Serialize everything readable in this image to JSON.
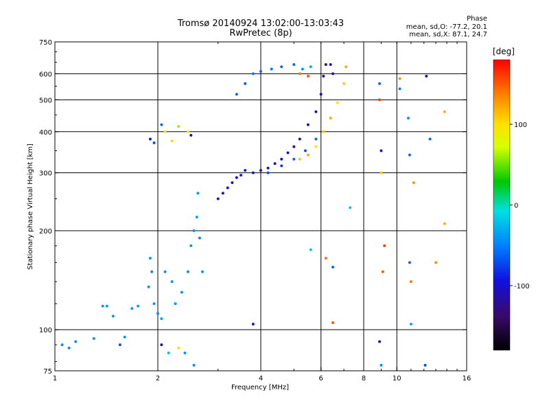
{
  "header": {
    "title": "Tromsø 20140924 13:02:00-13:03:43",
    "subtitle": "RwPretec (8p)"
  },
  "phase_info": {
    "heading": "Phase",
    "line_o": "mean, sd,O: -77.2, 20.1",
    "line_x": "mean, sd,X:  87.1, 24.7"
  },
  "colorbar": {
    "unit": "[deg]",
    "range": [
      -180,
      180
    ],
    "ticks": [
      {
        "value": 100,
        "label": "100"
      },
      {
        "value": 0,
        "label": "0"
      },
      {
        "value": -100,
        "label": "-100"
      }
    ]
  },
  "chart_data": {
    "type": "scatter",
    "title": "Tromsø 20140924 13:02:00-13:03:43",
    "subtitle": "RwPretec (8p)",
    "xlabel": "Frequency [MHz]",
    "ylabel": "Stationary phase Virtual Height [km]",
    "x_scale": "log",
    "y_scale": "log",
    "xlim": [
      1,
      16
    ],
    "ylim": [
      75,
      750
    ],
    "x_ticks": [
      {
        "value": 1,
        "label": "1"
      },
      {
        "value": 2,
        "label": "2"
      },
      {
        "value": 4,
        "label": "4"
      },
      {
        "value": 6,
        "label": "6"
      },
      {
        "value": 8,
        "label": "8"
      },
      {
        "value": 10,
        "label": "10"
      },
      {
        "value": 16,
        "label": "16"
      }
    ],
    "y_ticks": [
      {
        "value": 75,
        "label": "75"
      },
      {
        "value": 100,
        "label": "100"
      },
      {
        "value": 200,
        "label": "200"
      },
      {
        "value": 300,
        "label": "300"
      },
      {
        "value": 400,
        "label": "400"
      },
      {
        "value": 500,
        "label": "500"
      },
      {
        "value": 600,
        "label": "600"
      },
      {
        "value": 750,
        "label": "750"
      }
    ],
    "x_gridlines": [
      2,
      4,
      6,
      8,
      10
    ],
    "y_gridlines": [
      100,
      200,
      300,
      400,
      500,
      600
    ],
    "grid": true,
    "points": [
      [
        1.05,
        90,
        -45
      ],
      [
        1.1,
        88,
        -45
      ],
      [
        1.15,
        92,
        -45
      ],
      [
        1.3,
        94,
        -40
      ],
      [
        1.38,
        118,
        -40
      ],
      [
        1.42,
        118,
        -35
      ],
      [
        1.48,
        110,
        -40
      ],
      [
        1.55,
        90,
        -70
      ],
      [
        1.6,
        95,
        -40
      ],
      [
        1.68,
        116,
        -40
      ],
      [
        1.75,
        118,
        -35
      ],
      [
        1.88,
        135,
        -40
      ],
      [
        1.9,
        165,
        -40
      ],
      [
        1.92,
        150,
        -45
      ],
      [
        1.95,
        120,
        -40
      ],
      [
        2.0,
        112,
        -45
      ],
      [
        2.05,
        108,
        -35
      ],
      [
        2.1,
        150,
        -40
      ],
      [
        2.2,
        140,
        -40
      ],
      [
        2.25,
        120,
        -40
      ],
      [
        2.35,
        130,
        -40
      ],
      [
        2.45,
        150,
        -45
      ],
      [
        2.5,
        180,
        -40
      ],
      [
        2.55,
        200,
        -40
      ],
      [
        2.6,
        220,
        -35
      ],
      [
        2.62,
        260,
        -40
      ],
      [
        2.65,
        190,
        -45
      ],
      [
        2.7,
        150,
        -40
      ],
      [
        1.9,
        380,
        -90
      ],
      [
        1.95,
        370,
        -70
      ],
      [
        2.05,
        420,
        -60
      ],
      [
        2.1,
        400,
        100
      ],
      [
        2.2,
        375,
        100
      ],
      [
        2.3,
        415,
        60
      ],
      [
        2.45,
        400,
        90
      ],
      [
        2.5,
        390,
        -110
      ],
      [
        2.05,
        90,
        -110
      ],
      [
        2.15,
        85,
        -20
      ],
      [
        2.3,
        88,
        100
      ],
      [
        2.4,
        85,
        -40
      ],
      [
        2.55,
        78,
        -40
      ],
      [
        3.0,
        250,
        -110
      ],
      [
        3.1,
        260,
        -120
      ],
      [
        3.2,
        270,
        -100
      ],
      [
        3.3,
        280,
        -110
      ],
      [
        3.4,
        290,
        -100
      ],
      [
        3.5,
        295,
        -90
      ],
      [
        3.6,
        305,
        -100
      ],
      [
        3.8,
        300,
        -110
      ],
      [
        4.0,
        305,
        -90
      ],
      [
        4.2,
        310,
        -100
      ],
      [
        4.4,
        320,
        -110
      ],
      [
        4.6,
        330,
        -100
      ],
      [
        4.8,
        345,
        -110
      ],
      [
        5.0,
        360,
        -100
      ],
      [
        5.2,
        380,
        -110
      ],
      [
        5.5,
        420,
        -110
      ],
      [
        5.8,
        460,
        -110
      ],
      [
        6.0,
        520,
        -120
      ],
      [
        6.1,
        590,
        -120
      ],
      [
        6.2,
        640,
        -120
      ],
      [
        6.4,
        640,
        -110
      ],
      [
        6.5,
        600,
        -110
      ],
      [
        4.2,
        300,
        -70
      ],
      [
        4.6,
        315,
        -80
      ],
      [
        5.0,
        330,
        -60
      ],
      [
        5.4,
        350,
        -70
      ],
      [
        5.8,
        380,
        -60
      ],
      [
        5.2,
        330,
        110
      ],
      [
        5.5,
        340,
        120
      ],
      [
        5.8,
        360,
        100
      ],
      [
        6.1,
        400,
        110
      ],
      [
        6.4,
        440,
        120
      ],
      [
        6.7,
        490,
        100
      ],
      [
        7.0,
        560,
        110
      ],
      [
        7.1,
        630,
        120
      ],
      [
        3.4,
        520,
        -60
      ],
      [
        3.6,
        560,
        -65
      ],
      [
        3.8,
        600,
        -55
      ],
      [
        4.0,
        610,
        -60
      ],
      [
        4.3,
        620,
        -55
      ],
      [
        4.6,
        630,
        -60
      ],
      [
        5.0,
        640,
        -60
      ],
      [
        5.2,
        600,
        140
      ],
      [
        5.3,
        620,
        -40
      ],
      [
        5.5,
        590,
        150
      ],
      [
        5.6,
        630,
        -30
      ],
      [
        3.8,
        104,
        -100
      ],
      [
        8.9,
        560,
        -60
      ],
      [
        8.9,
        500,
        160
      ],
      [
        9.0,
        350,
        -110
      ],
      [
        9.0,
        300,
        110
      ],
      [
        9.2,
        180,
        160
      ],
      [
        9.1,
        150,
        150
      ],
      [
        8.9,
        92,
        -110
      ],
      [
        9.0,
        78,
        -40
      ],
      [
        10.2,
        580,
        130
      ],
      [
        10.2,
        540,
        -50
      ],
      [
        10.8,
        440,
        -40
      ],
      [
        10.9,
        340,
        -60
      ],
      [
        11.2,
        280,
        130
      ],
      [
        10.9,
        160,
        -60
      ],
      [
        11.0,
        140,
        140
      ],
      [
        11.0,
        104,
        -30
      ],
      [
        12.2,
        590,
        -110
      ],
      [
        12.1,
        78,
        -70
      ],
      [
        12.5,
        380,
        -60
      ],
      [
        13.0,
        160,
        130
      ],
      [
        13.8,
        460,
        120
      ],
      [
        13.8,
        210,
        120
      ],
      [
        5.6,
        175,
        -20
      ],
      [
        6.5,
        105,
        150
      ],
      [
        7.3,
        235,
        -20
      ],
      [
        6.2,
        165,
        140
      ],
      [
        6.5,
        155,
        -60
      ]
    ]
  }
}
